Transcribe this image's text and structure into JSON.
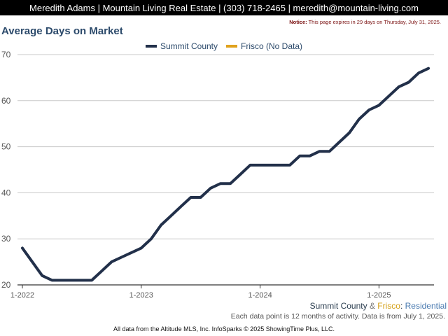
{
  "header": {
    "text": "Meredith Adams | Mountain Living Real Estate | (303) 718-2465 | meredith@mountain-living.com"
  },
  "notice": {
    "label": "Notice:",
    "text": "This page expires in 29 days on Thursday, July 31, 2025."
  },
  "footer": {
    "summit": "Summit County",
    "amp": " & ",
    "frisco": "Frisco",
    "colon": ": ",
    "residential": "Residential",
    "data_note": "Each data point is 12 months of activity. Data is from July 1, 2025.",
    "source": "All data from the Altitude MLS, Inc. InfoSparks © 2025 ShowingTime Plus, LLC."
  },
  "chart_data": {
    "type": "line",
    "title": "Average Days on Market",
    "ylim": [
      20,
      70
    ],
    "yticks": [
      20,
      30,
      40,
      50,
      60,
      70
    ],
    "xticks": [
      {
        "label": "1-2022",
        "month": 0
      },
      {
        "label": "1-2023",
        "month": 12
      },
      {
        "label": "1-2024",
        "month": 24
      },
      {
        "label": "1-2025",
        "month": 36
      }
    ],
    "grid": true,
    "legend_position": "top-center",
    "series": [
      {
        "name": "Summit County",
        "color": "#22304a",
        "points": [
          [
            0,
            28
          ],
          [
            1,
            25
          ],
          [
            2,
            22
          ],
          [
            3,
            21
          ],
          [
            4,
            21
          ],
          [
            5,
            21
          ],
          [
            6,
            21
          ],
          [
            7,
            21
          ],
          [
            8,
            23
          ],
          [
            9,
            25
          ],
          [
            10,
            26
          ],
          [
            11,
            27
          ],
          [
            12,
            28
          ],
          [
            13,
            30
          ],
          [
            14,
            33
          ],
          [
            15,
            35
          ],
          [
            16,
            37
          ],
          [
            17,
            39
          ],
          [
            18,
            39
          ],
          [
            19,
            41
          ],
          [
            20,
            42
          ],
          [
            21,
            42
          ],
          [
            22,
            44
          ],
          [
            23,
            46
          ],
          [
            24,
            46
          ],
          [
            25,
            46
          ],
          [
            26,
            46
          ],
          [
            27,
            46
          ],
          [
            28,
            48
          ],
          [
            29,
            48
          ],
          [
            30,
            49
          ],
          [
            31,
            49
          ],
          [
            32,
            51
          ],
          [
            33,
            53
          ],
          [
            34,
            56
          ],
          [
            35,
            58
          ],
          [
            36,
            59
          ],
          [
            37,
            61
          ],
          [
            38,
            63
          ],
          [
            39,
            64
          ],
          [
            40,
            66
          ],
          [
            41,
            67
          ]
        ]
      },
      {
        "name": "Frisco (No Data)",
        "color": "#e0a21d",
        "points": []
      }
    ]
  }
}
